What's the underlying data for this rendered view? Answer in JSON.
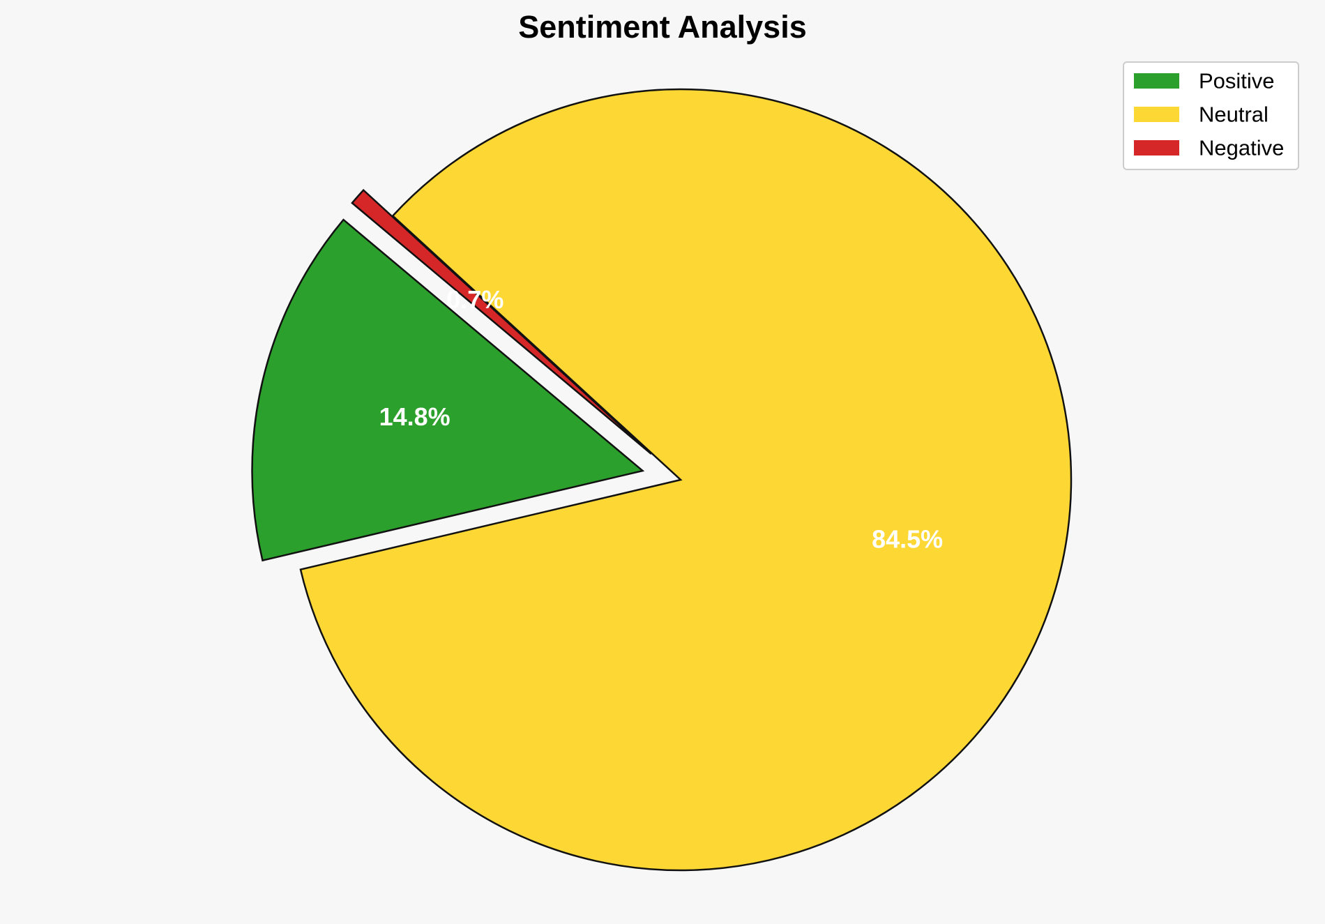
{
  "chart_data": {
    "type": "pie",
    "title": "Sentiment Analysis",
    "slices": [
      {
        "label": "Positive",
        "value": 14.8,
        "pct_label": "14.8%",
        "color": "#2ca02c"
      },
      {
        "label": "Neutral",
        "value": 84.5,
        "pct_label": "84.5%",
        "color": "#fdd835"
      },
      {
        "label": "Negative",
        "value": 0.7,
        "pct_label": "0.7%",
        "color": "#d62728"
      }
    ],
    "start_angle_deg": 140,
    "exploded": [
      "Positive",
      "Negative"
    ],
    "legend_position": "top-right"
  }
}
